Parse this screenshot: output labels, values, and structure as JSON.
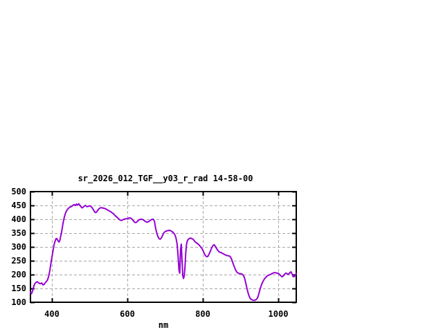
{
  "window": {
    "background_color": "#ffffff"
  },
  "chart_data": {
    "type": "line",
    "title": "sr_2026_012_TGF__y03_r_rad 14-58-00",
    "xlabel": "nm",
    "ylabel": "",
    "xlim": [
      343,
      1048
    ],
    "ylim": [
      100,
      500
    ],
    "x_ticks": [
      400,
      600,
      800,
      1000
    ],
    "y_ticks": [
      100,
      150,
      200,
      250,
      300,
      350,
      400,
      450,
      500
    ],
    "grid": true,
    "grid_style": "dashed",
    "legend_position": "none",
    "line_color": "#9400d3",
    "grid_color": "#a6a6a6",
    "axis_color": "#000000",
    "text_color": "#000000",
    "series": [
      {
        "name": "sr_2026_012_TGF__y03_r_rad",
        "x": [
          343,
          346,
          349,
          352,
          355,
          358,
          361,
          364,
          367,
          370,
          373,
          376,
          379,
          382,
          385,
          388,
          391,
          394,
          397,
          400,
          403,
          406,
          409,
          411,
          413,
          415,
          417,
          419,
          421,
          423,
          425,
          427,
          429,
          431,
          433,
          435,
          437,
          439,
          441,
          444,
          447,
          450,
          453,
          456,
          459,
          462,
          465,
          468,
          471,
          474,
          477,
          480,
          483,
          486,
          489,
          492,
          495,
          498,
          501,
          504,
          507,
          510,
          513,
          516,
          519,
          522,
          525,
          528,
          531,
          534,
          537,
          540,
          543,
          546,
          549,
          552,
          555,
          558,
          561,
          564,
          567,
          570,
          573,
          576,
          579,
          582,
          585,
          588,
          591,
          594,
          597,
          600,
          603,
          606,
          609,
          612,
          615,
          618,
          621,
          624,
          627,
          630,
          633,
          636,
          639,
          642,
          645,
          648,
          651,
          654,
          657,
          660,
          663,
          666,
          669,
          672,
          675,
          678,
          681,
          684,
          687,
          690,
          693,
          696,
          699,
          702,
          705,
          708,
          711,
          714,
          717,
          720,
          723,
          726,
          729,
          732,
          735,
          737,
          739,
          741,
          743,
          745,
          747,
          749,
          751,
          753,
          755,
          757,
          759,
          762,
          765,
          768,
          771,
          774,
          777,
          780,
          783,
          786,
          789,
          792,
          795,
          798,
          801,
          804,
          807,
          810,
          813,
          816,
          819,
          822,
          825,
          828,
          830,
          833,
          836,
          839,
          842,
          845,
          848,
          852,
          856,
          860,
          864,
          868,
          872,
          875,
          878,
          881,
          884,
          887,
          890,
          893,
          896,
          899,
          902,
          905,
          908,
          911,
          914,
          917,
          920,
          923,
          926,
          929,
          932,
          935,
          938,
          941,
          944,
          947,
          950,
          953,
          956,
          959,
          962,
          965,
          968,
          971,
          974,
          977,
          980,
          983,
          986,
          989,
          992,
          995,
          998,
          1001,
          1004,
          1007,
          1010,
          1013,
          1016,
          1019,
          1022,
          1025,
          1028,
          1031,
          1034,
          1037,
          1040,
          1043,
          1046,
          1048
        ],
        "y": [
          136,
          131,
          143,
          158,
          168,
          172,
          174,
          171,
          168,
          167,
          170,
          163,
          164,
          170,
          175,
          180,
          192,
          212,
          238,
          262,
          288,
          310,
          323,
          330,
          330,
          325,
          320,
          318,
          324,
          338,
          350,
          366,
          382,
          396,
          408,
          418,
          426,
          431,
          435,
          440,
          443,
          445,
          447,
          451,
          453,
          450,
          455,
          451,
          456,
          451,
          445,
          441,
          444,
          448,
          450,
          446,
          446,
          448,
          448,
          446,
          441,
          434,
          427,
          424,
          427,
          433,
          438,
          441,
          442,
          441,
          440,
          439,
          437,
          435,
          432,
          430,
          428,
          425,
          422,
          419,
          414,
          410,
          407,
          403,
          399,
          396,
          396,
          398,
          400,
          401,
          402,
          402,
          404,
          405,
          404,
          401,
          396,
          391,
          388,
          389,
          393,
          397,
          399,
          400,
          400,
          398,
          395,
          392,
          390,
          390,
          392,
          395,
          398,
          400,
          400,
          392,
          368,
          350,
          338,
          330,
          328,
          332,
          340,
          349,
          354,
          357,
          358,
          359,
          360,
          359,
          357,
          354,
          350,
          344,
          333,
          310,
          260,
          215,
          205,
          290,
          310,
          250,
          195,
          186,
          195,
          230,
          280,
          310,
          322,
          328,
          331,
          332,
          330,
          328,
          323,
          318,
          315,
          312,
          309,
          304,
          299,
          294,
          286,
          276,
          269,
          265,
          265,
          272,
          281,
          291,
          300,
          306,
          308,
          303,
          296,
          289,
          284,
          281,
          280,
          277,
          274,
          271,
          269,
          268,
          266,
          260,
          250,
          238,
          227,
          217,
          210,
          206,
          204,
          203,
          203,
          201,
          197,
          187,
          170,
          152,
          135,
          122,
          114,
          110,
          108,
          107,
          107,
          109,
          113,
          122,
          137,
          152,
          164,
          173,
          181,
          187,
          191,
          195,
          198,
          199,
          201,
          203,
          205,
          207,
          207,
          206,
          205,
          204,
          200,
          196,
          192,
          194,
          199,
          204,
          205,
          201,
          202,
          207,
          210,
          202,
          192,
          193,
          200,
          204
        ]
      }
    ]
  }
}
